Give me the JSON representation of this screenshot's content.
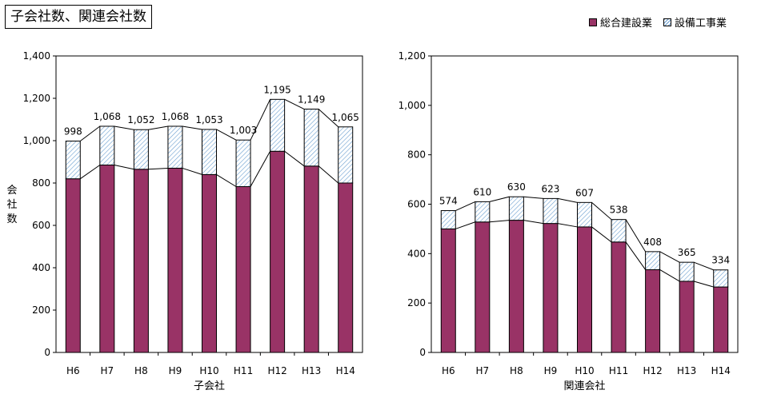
{
  "title": "子会社数、関連会社数",
  "legend": [
    {
      "label": "総合建設業",
      "color": "#993366",
      "pattern": "solid"
    },
    {
      "label": "設備工事業",
      "color": "#ccecff",
      "pattern": "hatch"
    }
  ],
  "chart_data": [
    {
      "type": "bar",
      "stacked": true,
      "categories": [
        "H6",
        "H7",
        "H8",
        "H9",
        "H10",
        "H11",
        "H12",
        "H13",
        "H14"
      ],
      "series": [
        {
          "name": "総合建設業",
          "values": [
            820,
            885,
            865,
            870,
            840,
            783,
            950,
            880,
            800
          ]
        },
        {
          "name": "設備工事業",
          "values": [
            178,
            183,
            187,
            198,
            213,
            220,
            245,
            269,
            265
          ]
        }
      ],
      "totals": [
        998,
        1068,
        1052,
        1068,
        1053,
        1003,
        1195,
        1149,
        1065
      ],
      "total_labels": [
        "998",
        "1,068",
        "1,052",
        "1,068",
        "1,053",
        "1,003",
        "1,195",
        "1,149",
        "1,065"
      ],
      "xlabel": "子会社",
      "ylabel": "会社数",
      "ylim": [
        0,
        1400
      ],
      "yticks": [
        "0",
        "200",
        "400",
        "600",
        "800",
        "1,000",
        "1,200",
        "1,400"
      ],
      "connector_lines": true
    },
    {
      "type": "bar",
      "stacked": true,
      "categories": [
        "H6",
        "H7",
        "H8",
        "H9",
        "H10",
        "H11",
        "H12",
        "H13",
        "H14"
      ],
      "series": [
        {
          "name": "総合建設業",
          "values": [
            500,
            528,
            535,
            522,
            508,
            447,
            335,
            288,
            265
          ]
        },
        {
          "name": "設備工事業",
          "values": [
            74,
            82,
            95,
            101,
            99,
            91,
            73,
            77,
            69
          ]
        }
      ],
      "totals": [
        574,
        610,
        630,
        623,
        607,
        538,
        408,
        365,
        334
      ],
      "total_labels": [
        "574",
        "610",
        "630",
        "623",
        "607",
        "538",
        "408",
        "365",
        "334"
      ],
      "xlabel": "関連会社",
      "ylabel": "",
      "ylim": [
        0,
        1200
      ],
      "yticks": [
        "0",
        "200",
        "400",
        "600",
        "800",
        "1,000",
        "1,200"
      ],
      "connector_lines": true
    }
  ]
}
